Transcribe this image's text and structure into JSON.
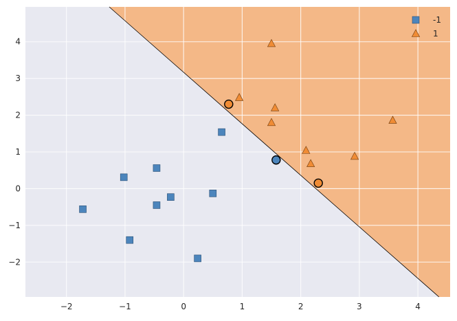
{
  "chart_data": {
    "type": "scatter",
    "title": "",
    "xlabel": "",
    "ylabel": "",
    "xlim": [
      -2.7,
      4.55
    ],
    "ylim": [
      -2.95,
      4.95
    ],
    "xticks": [
      -2,
      -1,
      0,
      1,
      2,
      3,
      4
    ],
    "yticks": [
      -2,
      -1,
      0,
      1,
      2,
      3,
      4
    ],
    "xtick_labels": [
      "−2",
      "−1",
      "0",
      "1",
      "2",
      "3",
      "4"
    ],
    "ytick_labels": [
      "−2",
      "−1",
      "0",
      "1",
      "2",
      "3",
      "4"
    ],
    "grid": true,
    "background_color": "#e8e9f1",
    "decision_boundary": {
      "points": [
        [
          -1.27,
          4.95
        ],
        [
          4.36,
          -2.95
        ]
      ],
      "region_colors": {
        "-1": "#e8e9f1",
        "1": "#f4b887"
      }
    },
    "series": [
      {
        "name": "-1",
        "marker": "square",
        "color": "#4c85bc",
        "points": [
          [
            -1.72,
            -0.56
          ],
          [
            -1.02,
            0.31
          ],
          [
            -0.92,
            -1.4
          ],
          [
            -0.46,
            0.56
          ],
          [
            -0.46,
            -0.45
          ],
          [
            -0.22,
            -0.23
          ],
          [
            0.24,
            -1.9
          ],
          [
            0.5,
            -0.13
          ],
          [
            0.65,
            1.54
          ]
        ]
      },
      {
        "name": "1",
        "marker": "triangle",
        "color": "#f08c35",
        "points": [
          [
            0.95,
            2.48
          ],
          [
            1.5,
            3.95
          ],
          [
            1.5,
            1.8
          ],
          [
            1.56,
            2.2
          ],
          [
            2.09,
            1.04
          ],
          [
            2.17,
            0.68
          ],
          [
            2.92,
            0.88
          ],
          [
            3.57,
            1.86
          ]
        ]
      }
    ],
    "support_vectors": [
      {
        "x": 0.77,
        "y": 2.3,
        "class": "1"
      },
      {
        "x": 1.58,
        "y": 0.78,
        "class": "-1"
      },
      {
        "x": 2.3,
        "y": 0.15,
        "class": "1"
      }
    ],
    "legend": {
      "placement": "top-right",
      "entries": [
        {
          "label": "-1",
          "marker": "square",
          "color": "#4c85bc"
        },
        {
          "label": "1",
          "marker": "triangle",
          "color": "#f08c35"
        }
      ]
    }
  }
}
